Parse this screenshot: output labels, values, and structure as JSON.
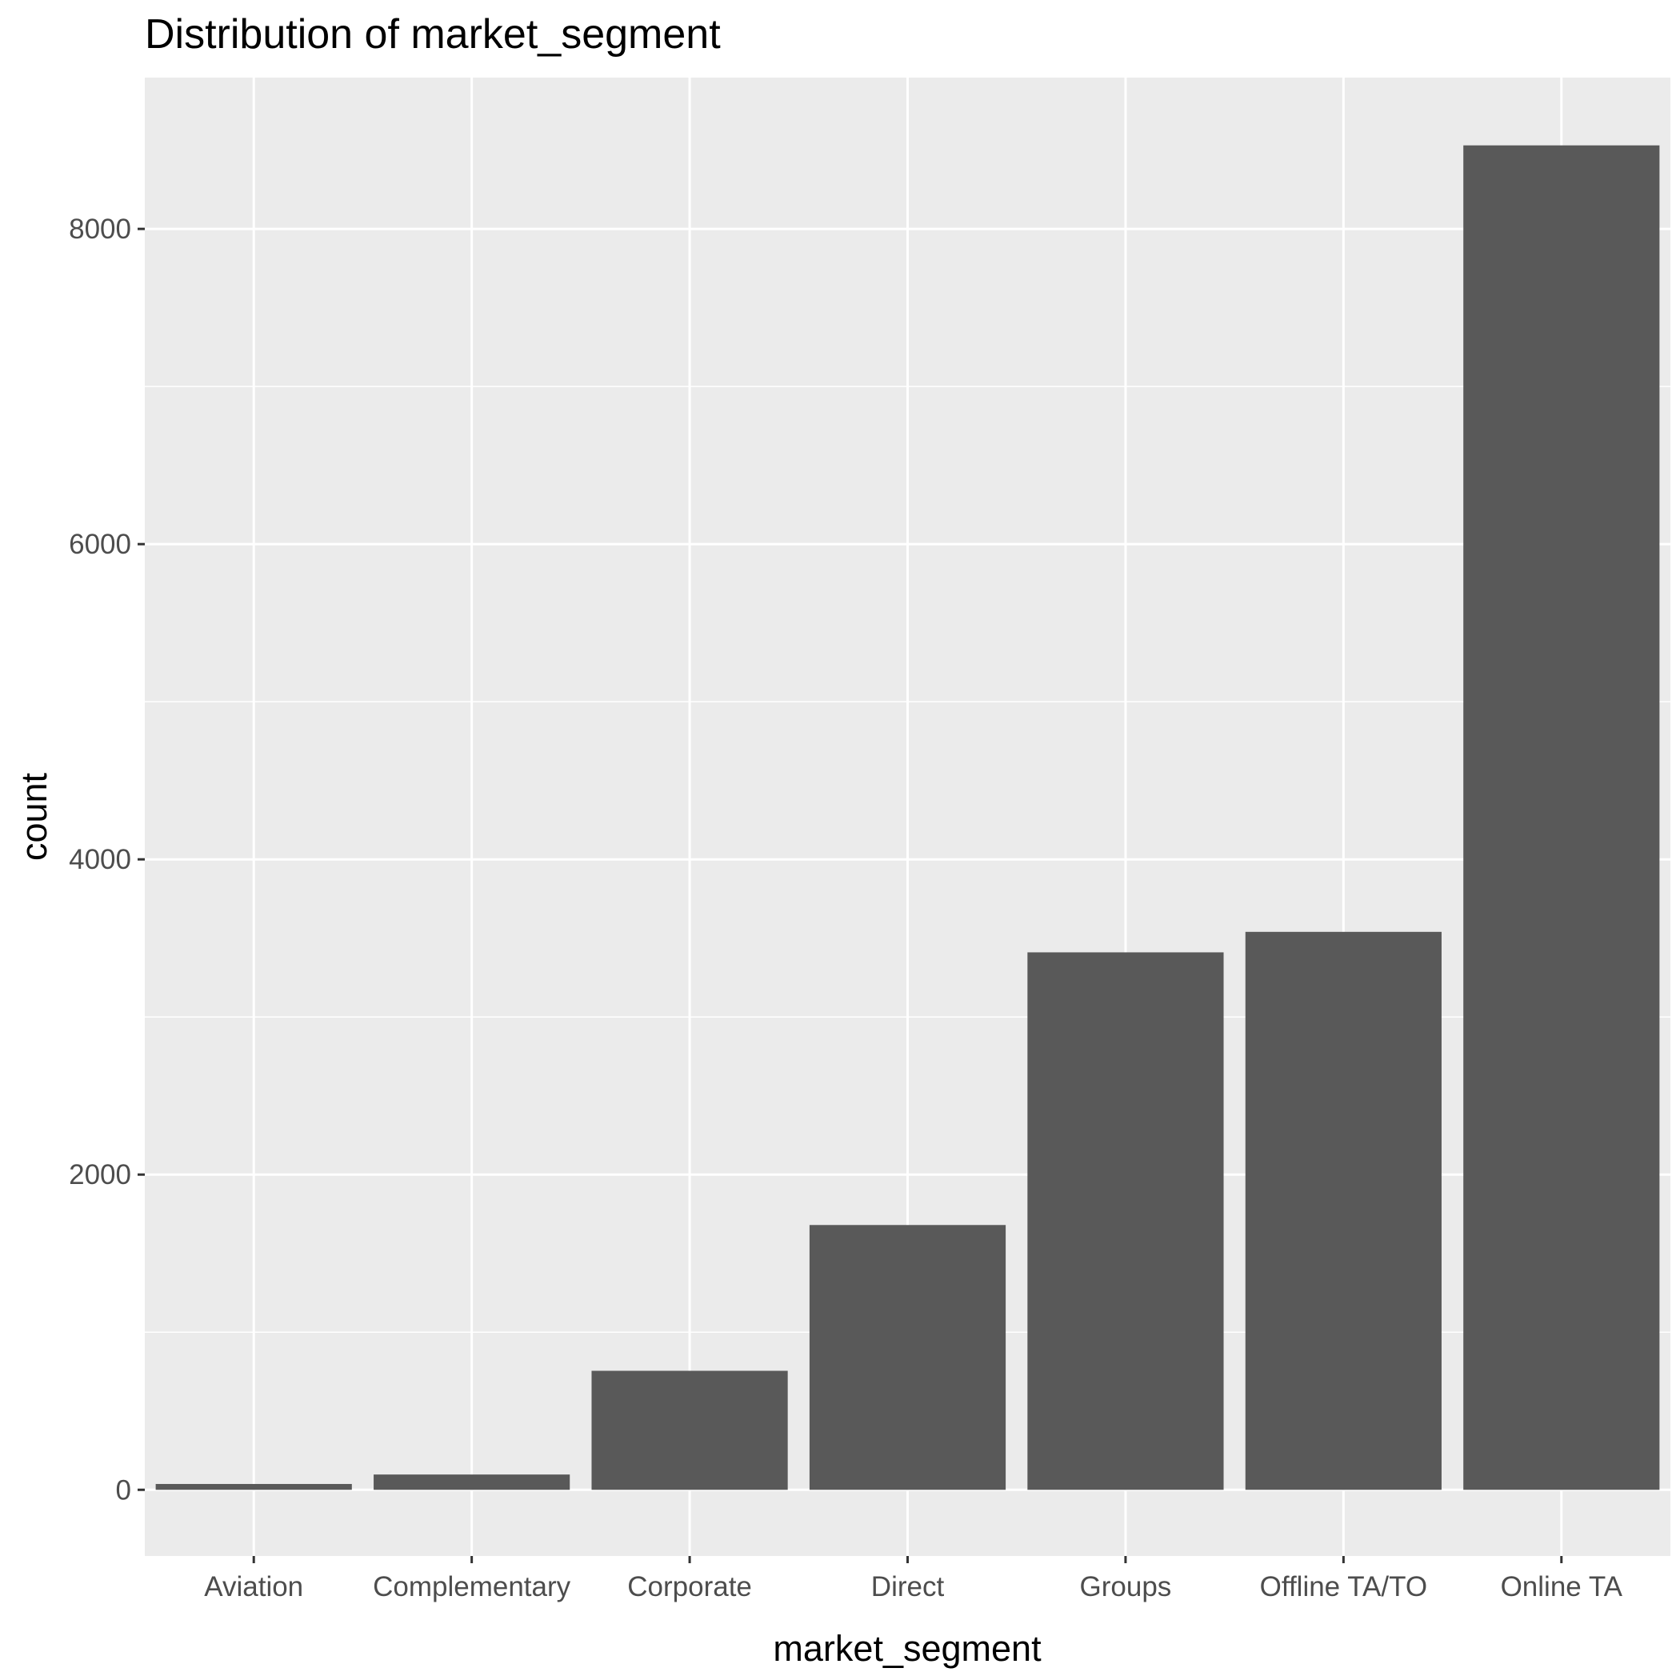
{
  "chart_data": {
    "type": "bar",
    "title": "Distribution of market_segment",
    "xlabel": "market_segment",
    "ylabel": "count",
    "categories": [
      "Aviation",
      "Complementary",
      "Corporate",
      "Direct",
      "Groups",
      "Offline TA/TO",
      "Online TA"
    ],
    "values": [
      37,
      97,
      755,
      1680,
      3410,
      3540,
      8530
    ],
    "ylim": [
      -420,
      8960
    ],
    "yticks": [
      0,
      2000,
      4000,
      6000,
      8000
    ],
    "ytick_labels": [
      "0",
      "2000",
      "4000",
      "6000",
      "8000"
    ],
    "grid": true,
    "legend": "none",
    "colors": {
      "bar": "#595959",
      "panel": "#ebebeb",
      "grid": "#ffffff",
      "tick_text": "#4d4d4d",
      "tick_mark": "#333333"
    }
  }
}
